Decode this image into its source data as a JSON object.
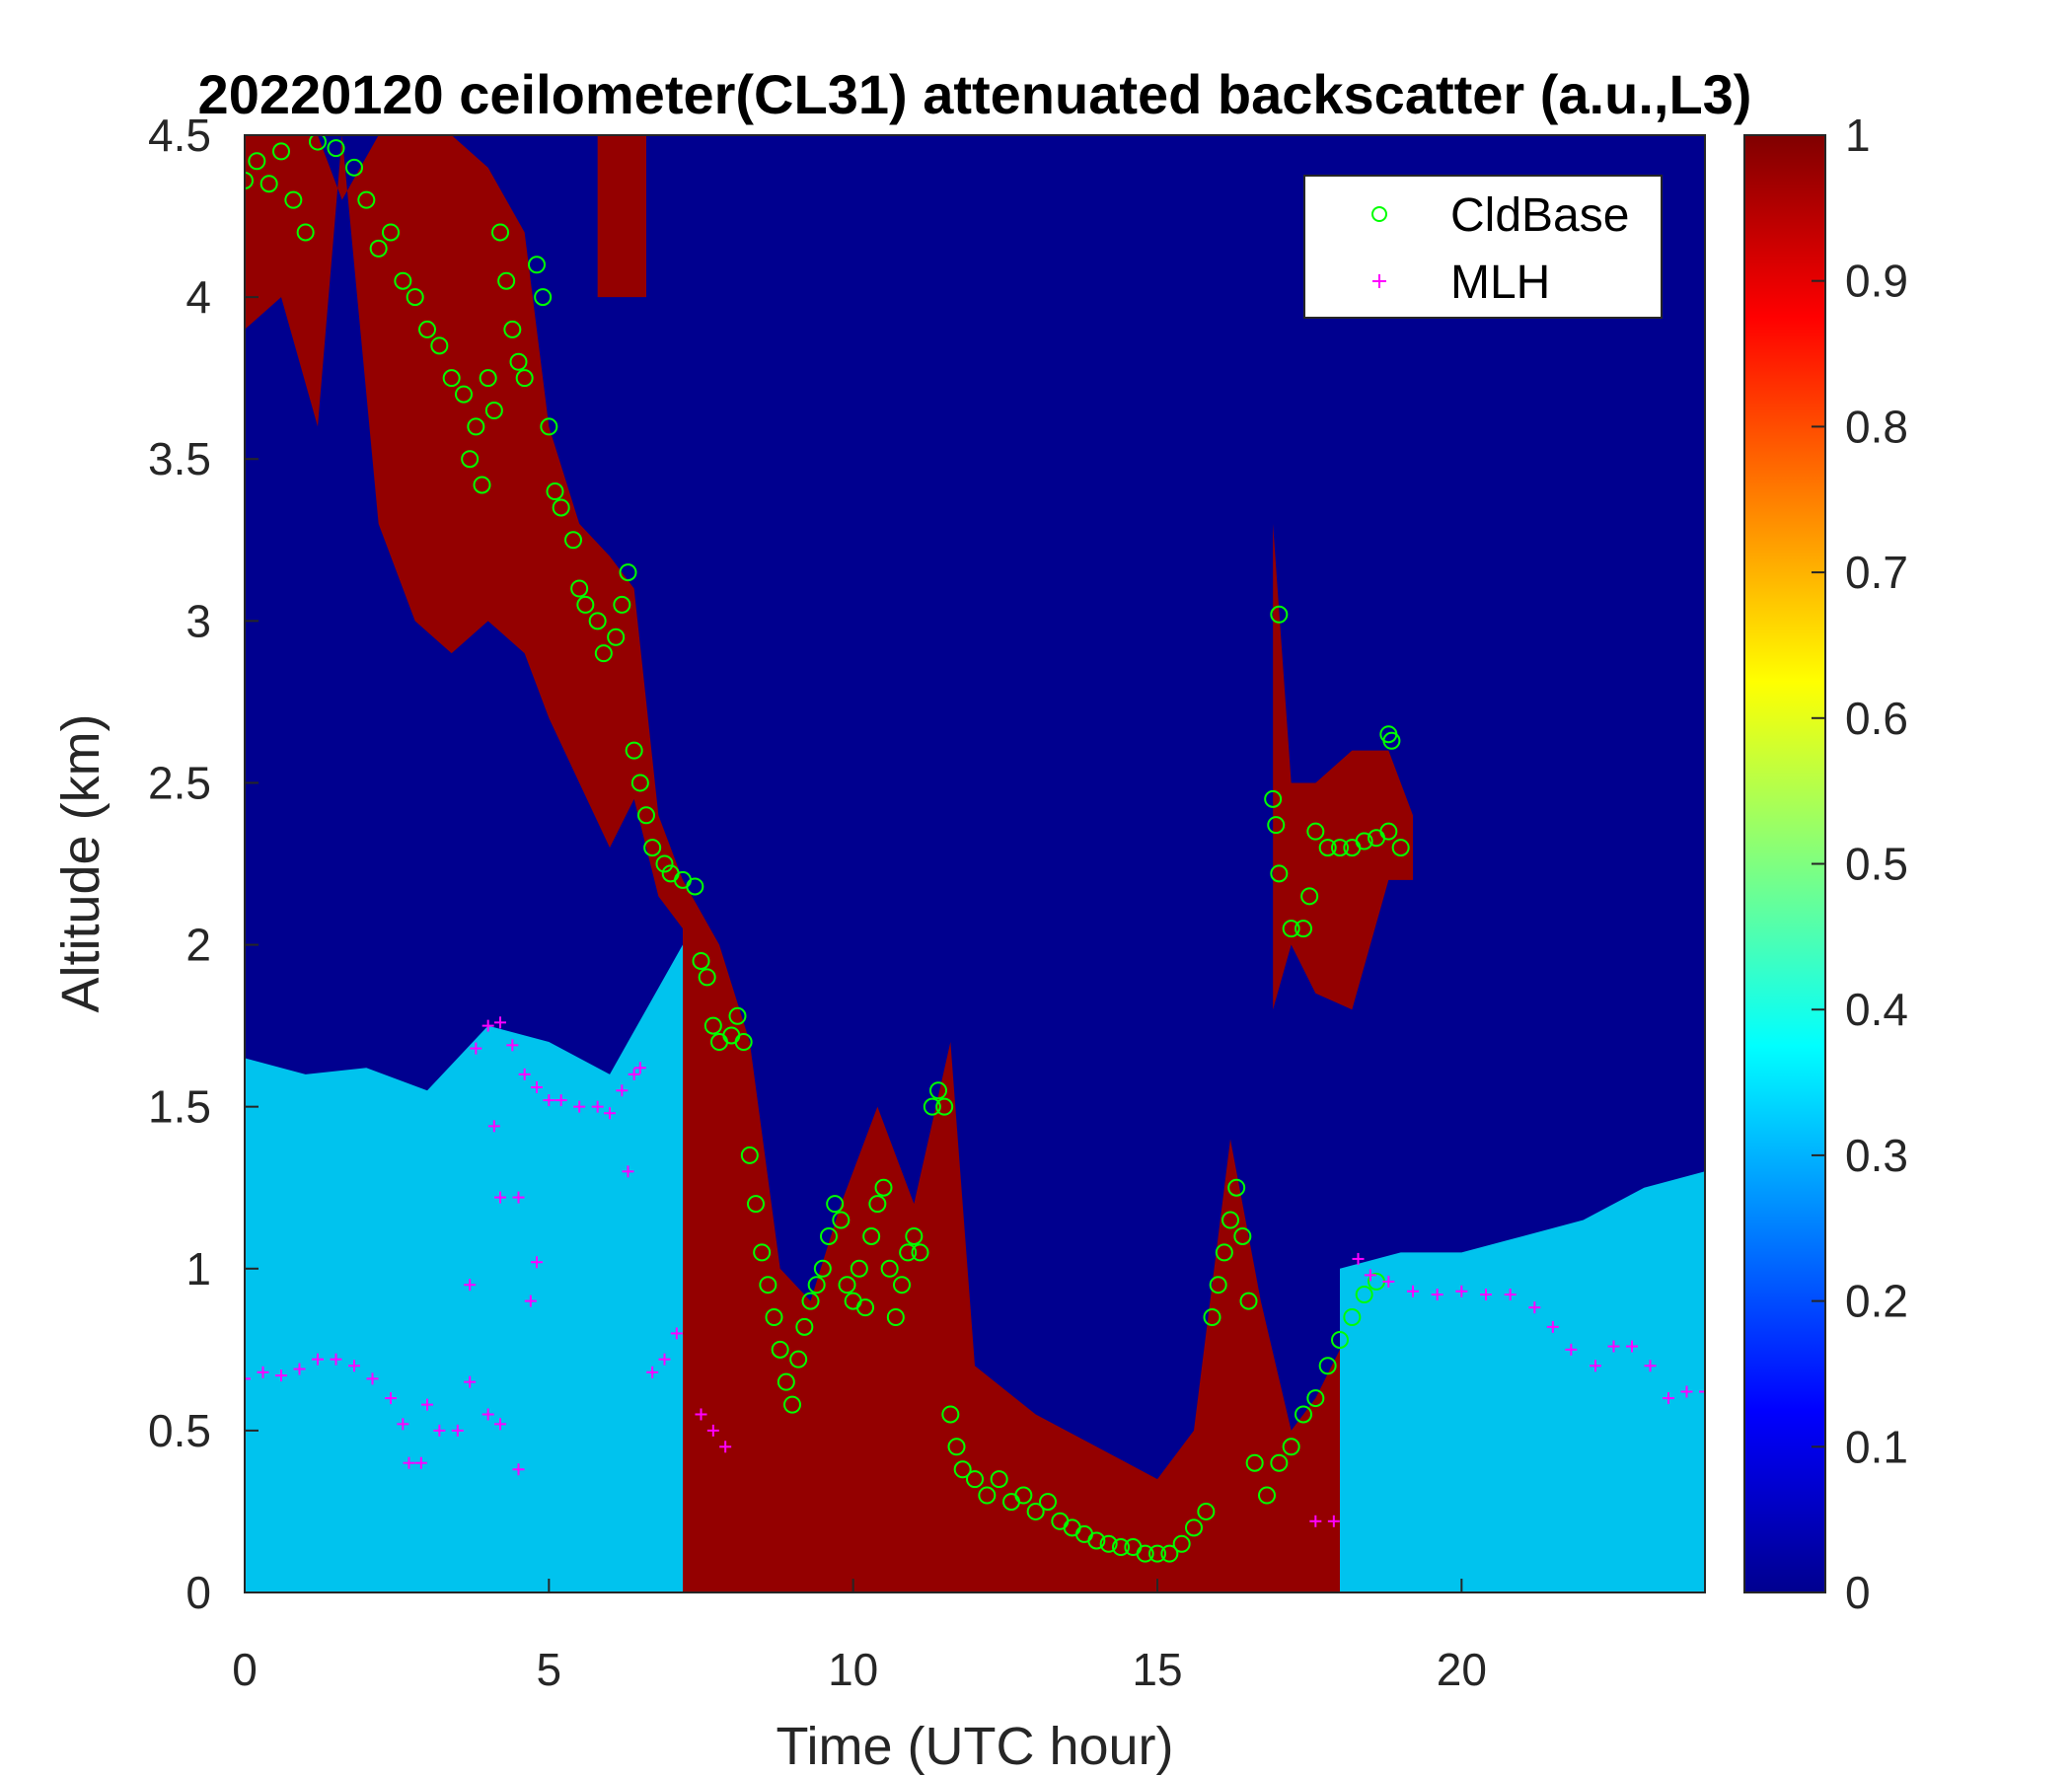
{
  "chart_data": {
    "type": "heatmap",
    "title": "20220120 ceilometer(CL31) attenuated backscatter (a.u.,L3)",
    "xlabel": "Time (UTC hour)",
    "ylabel": "Altitude (km)",
    "xlim": [
      0,
      24
    ],
    "ylim": [
      0,
      4.5
    ],
    "x_ticks": [
      0,
      5,
      10,
      15,
      20
    ],
    "x_tick_labels": [
      "0",
      "5",
      "10",
      "15",
      "20"
    ],
    "y_ticks": [
      0,
      0.5,
      1,
      1.5,
      2,
      2.5,
      3,
      3.5,
      4,
      4.5
    ],
    "y_tick_labels": [
      "0",
      "0.5",
      "1",
      "1.5",
      "2",
      "2.5",
      "3",
      "3.5",
      "4",
      "4.5"
    ],
    "colormap": "jet",
    "colorbar": {
      "range": [
        0,
        1
      ],
      "ticks": [
        0,
        0.1,
        0.2,
        0.3,
        0.4,
        0.5,
        0.6,
        0.7,
        0.8,
        0.9,
        1
      ],
      "tick_labels": [
        "0",
        "0.1",
        "0.2",
        "0.3",
        "0.4",
        "0.5",
        "0.6",
        "0.7",
        "0.8",
        "0.9",
        "1"
      ]
    },
    "legend": {
      "placement": "top-right",
      "entries": [
        {
          "label": "CldBase",
          "marker": "circle",
          "color": "#00ff00"
        },
        {
          "label": "MLH",
          "marker": "plus",
          "color": "#ff00ff"
        }
      ]
    },
    "cloud_bands": [
      {
        "points": [
          [
            0,
            4.5,
            3.9
          ],
          [
            0.6,
            4.5,
            4.0
          ],
          [
            1.2,
            4.5,
            3.6
          ],
          [
            1.6,
            4.3,
            4.5
          ],
          [
            2.2,
            4.5,
            3.3
          ],
          [
            2.8,
            4.5,
            3.0
          ],
          [
            3.4,
            4.5,
            2.9
          ],
          [
            4.0,
            4.4,
            3.0
          ],
          [
            4.6,
            4.2,
            2.9
          ],
          [
            5.0,
            3.6,
            2.7
          ],
          [
            5.5,
            3.3,
            2.5
          ],
          [
            6.0,
            3.2,
            2.3
          ],
          [
            6.4,
            3.1,
            2.45
          ],
          [
            6.8,
            2.4,
            2.15
          ],
          [
            7.2,
            2.2,
            2.05
          ]
        ],
        "value": 0.98
      },
      {
        "points": [
          [
            5.8,
            4.5,
            4.0
          ],
          [
            6.6,
            4.5,
            4.0
          ]
        ],
        "value": 0.98
      },
      {
        "points": [
          [
            7.2,
            2.2,
            0.0
          ],
          [
            7.8,
            2.0,
            0.0
          ],
          [
            8.3,
            1.7,
            0.0
          ],
          [
            8.8,
            1.0,
            0.0
          ],
          [
            9.3,
            0.9,
            0.0
          ],
          [
            9.8,
            1.2,
            0.0
          ],
          [
            10.4,
            1.5,
            0.0
          ],
          [
            11.0,
            1.2,
            0.0
          ],
          [
            11.6,
            1.7,
            0.0
          ],
          [
            12.0,
            0.7,
            0.0
          ],
          [
            13.0,
            0.55,
            0.0
          ],
          [
            14.0,
            0.45,
            0.0
          ],
          [
            15.0,
            0.35,
            0.0
          ],
          [
            15.6,
            0.5,
            0.0
          ],
          [
            16.2,
            1.4,
            0.0
          ],
          [
            16.7,
            0.9,
            0.0
          ],
          [
            17.2,
            0.5,
            0.0
          ],
          [
            17.6,
            0.6,
            0.0
          ],
          [
            18.0,
            0.75,
            0.0
          ]
        ],
        "value": 0.98
      },
      {
        "points": [
          [
            16.9,
            3.3,
            1.8
          ],
          [
            17.2,
            2.5,
            2.0
          ],
          [
            17.6,
            2.5,
            1.85
          ],
          [
            18.2,
            2.6,
            1.8
          ],
          [
            18.8,
            2.6,
            2.2
          ],
          [
            19.2,
            2.4,
            2.2
          ]
        ],
        "value": 0.98
      }
    ],
    "boundary_layer": [
      {
        "x": [
          0,
          1,
          2,
          3,
          4,
          5,
          6,
          7.2
        ],
        "top": [
          1.65,
          1.6,
          1.62,
          1.55,
          1.75,
          1.7,
          1.6,
          2.0
        ],
        "value": 0.35
      },
      {
        "x": [
          18.0,
          19,
          20,
          21,
          22,
          23,
          24
        ],
        "top": [
          1.0,
          1.05,
          1.05,
          1.1,
          1.15,
          1.25,
          1.3
        ],
        "value": 0.35
      }
    ],
    "series": [
      {
        "name": "CldBase",
        "marker": "circle",
        "color": "#00ff00",
        "points": [
          [
            0.0,
            4.36
          ],
          [
            0.2,
            4.42
          ],
          [
            0.4,
            4.35
          ],
          [
            0.6,
            4.45
          ],
          [
            0.8,
            4.3
          ],
          [
            1.0,
            4.2
          ],
          [
            1.2,
            4.48
          ],
          [
            1.5,
            4.46
          ],
          [
            1.8,
            4.4
          ],
          [
            2.0,
            4.3
          ],
          [
            2.2,
            4.15
          ],
          [
            2.4,
            4.2
          ],
          [
            2.6,
            4.05
          ],
          [
            2.8,
            4.0
          ],
          [
            3.0,
            3.9
          ],
          [
            3.2,
            3.85
          ],
          [
            3.4,
            3.75
          ],
          [
            3.6,
            3.7
          ],
          [
            3.8,
            3.6
          ],
          [
            3.7,
            3.5
          ],
          [
            3.9,
            3.42
          ],
          [
            4.0,
            3.75
          ],
          [
            4.1,
            3.65
          ],
          [
            4.2,
            4.2
          ],
          [
            4.3,
            4.05
          ],
          [
            4.4,
            3.9
          ],
          [
            4.5,
            3.8
          ],
          [
            4.6,
            3.75
          ],
          [
            4.8,
            4.1
          ],
          [
            4.9,
            4.0
          ],
          [
            5.0,
            3.6
          ],
          [
            5.1,
            3.4
          ],
          [
            5.2,
            3.35
          ],
          [
            5.4,
            3.25
          ],
          [
            5.5,
            3.1
          ],
          [
            5.6,
            3.05
          ],
          [
            5.8,
            3.0
          ],
          [
            5.9,
            2.9
          ],
          [
            6.1,
            2.95
          ],
          [
            6.2,
            3.05
          ],
          [
            6.3,
            3.15
          ],
          [
            6.4,
            2.6
          ],
          [
            6.5,
            2.5
          ],
          [
            6.6,
            2.4
          ],
          [
            6.7,
            2.3
          ],
          [
            6.9,
            2.25
          ],
          [
            7.0,
            2.22
          ],
          [
            7.2,
            2.2
          ],
          [
            7.4,
            2.18
          ],
          [
            7.5,
            1.95
          ],
          [
            7.6,
            1.9
          ],
          [
            7.7,
            1.75
          ],
          [
            7.8,
            1.7
          ],
          [
            8.0,
            1.72
          ],
          [
            8.1,
            1.78
          ],
          [
            8.2,
            1.7
          ],
          [
            8.3,
            1.35
          ],
          [
            8.4,
            1.2
          ],
          [
            8.5,
            1.05
          ],
          [
            8.6,
            0.95
          ],
          [
            8.7,
            0.85
          ],
          [
            8.8,
            0.75
          ],
          [
            8.9,
            0.65
          ],
          [
            9.0,
            0.58
          ],
          [
            9.1,
            0.72
          ],
          [
            9.2,
            0.82
          ],
          [
            9.3,
            0.9
          ],
          [
            9.4,
            0.95
          ],
          [
            9.5,
            1.0
          ],
          [
            9.6,
            1.1
          ],
          [
            9.7,
            1.2
          ],
          [
            9.8,
            1.15
          ],
          [
            9.9,
            0.95
          ],
          [
            10.0,
            0.9
          ],
          [
            10.1,
            1.0
          ],
          [
            10.2,
            0.88
          ],
          [
            10.3,
            1.1
          ],
          [
            10.4,
            1.2
          ],
          [
            10.5,
            1.25
          ],
          [
            10.6,
            1.0
          ],
          [
            10.7,
            0.85
          ],
          [
            10.8,
            0.95
          ],
          [
            10.9,
            1.05
          ],
          [
            11.0,
            1.1
          ],
          [
            11.1,
            1.05
          ],
          [
            11.3,
            1.5
          ],
          [
            11.4,
            1.55
          ],
          [
            11.5,
            1.5
          ],
          [
            11.6,
            0.55
          ],
          [
            11.7,
            0.45
          ],
          [
            11.8,
            0.38
          ],
          [
            12.0,
            0.35
          ],
          [
            12.2,
            0.3
          ],
          [
            12.4,
            0.35
          ],
          [
            12.6,
            0.28
          ],
          [
            12.8,
            0.3
          ],
          [
            13.0,
            0.25
          ],
          [
            13.2,
            0.28
          ],
          [
            13.4,
            0.22
          ],
          [
            13.6,
            0.2
          ],
          [
            13.8,
            0.18
          ],
          [
            14.0,
            0.16
          ],
          [
            14.2,
            0.15
          ],
          [
            14.4,
            0.14
          ],
          [
            14.6,
            0.14
          ],
          [
            14.8,
            0.12
          ],
          [
            15.0,
            0.12
          ],
          [
            15.2,
            0.12
          ],
          [
            15.4,
            0.15
          ],
          [
            15.6,
            0.2
          ],
          [
            15.8,
            0.25
          ],
          [
            15.9,
            0.85
          ],
          [
            16.0,
            0.95
          ],
          [
            16.1,
            1.05
          ],
          [
            16.2,
            1.15
          ],
          [
            16.3,
            1.25
          ],
          [
            16.4,
            1.1
          ],
          [
            16.5,
            0.9
          ],
          [
            16.6,
            0.4
          ],
          [
            16.8,
            0.3
          ],
          [
            17.0,
            0.4
          ],
          [
            17.2,
            0.45
          ],
          [
            17.4,
            0.55
          ],
          [
            17.6,
            0.6
          ],
          [
            17.8,
            0.7
          ],
          [
            18.0,
            0.78
          ],
          [
            18.2,
            0.85
          ],
          [
            18.4,
            0.92
          ],
          [
            18.6,
            0.96
          ],
          [
            17.0,
            3.02
          ],
          [
            16.9,
            2.45
          ],
          [
            16.95,
            2.37
          ],
          [
            17.0,
            2.22
          ],
          [
            17.2,
            2.05
          ],
          [
            17.4,
            2.05
          ],
          [
            17.5,
            2.15
          ],
          [
            17.6,
            2.35
          ],
          [
            17.8,
            2.3
          ],
          [
            18.0,
            2.3
          ],
          [
            18.2,
            2.3
          ],
          [
            18.4,
            2.32
          ],
          [
            18.6,
            2.33
          ],
          [
            18.8,
            2.35
          ],
          [
            19.0,
            2.3
          ],
          [
            18.8,
            2.65
          ],
          [
            18.85,
            2.63
          ]
        ]
      },
      {
        "name": "MLH",
        "marker": "plus",
        "color": "#ff00ff",
        "points": [
          [
            0.0,
            0.66
          ],
          [
            0.3,
            0.68
          ],
          [
            0.6,
            0.67
          ],
          [
            0.9,
            0.69
          ],
          [
            1.2,
            0.72
          ],
          [
            1.5,
            0.72
          ],
          [
            1.8,
            0.7
          ],
          [
            2.1,
            0.66
          ],
          [
            2.4,
            0.6
          ],
          [
            2.6,
            0.52
          ],
          [
            2.7,
            0.4
          ],
          [
            2.9,
            0.4
          ],
          [
            3.0,
            0.58
          ],
          [
            3.2,
            0.5
          ],
          [
            3.5,
            0.5
          ],
          [
            3.7,
            0.65
          ],
          [
            3.8,
            1.68
          ],
          [
            4.0,
            1.75
          ],
          [
            4.1,
            1.44
          ],
          [
            4.2,
            1.76
          ],
          [
            4.4,
            1.69
          ],
          [
            4.6,
            1.6
          ],
          [
            4.8,
            1.56
          ],
          [
            5.0,
            1.52
          ],
          [
            5.2,
            1.52
          ],
          [
            5.5,
            1.5
          ],
          [
            5.8,
            1.5
          ],
          [
            6.0,
            1.48
          ],
          [
            6.2,
            1.55
          ],
          [
            6.4,
            1.6
          ],
          [
            6.5,
            1.62
          ],
          [
            4.2,
            1.22
          ],
          [
            4.5,
            1.22
          ],
          [
            4.7,
            0.9
          ],
          [
            4.8,
            1.02
          ],
          [
            3.7,
            0.95
          ],
          [
            4.0,
            0.55
          ],
          [
            4.2,
            0.52
          ],
          [
            4.5,
            0.38
          ],
          [
            6.3,
            1.3
          ],
          [
            6.7,
            0.68
          ],
          [
            6.9,
            0.72
          ],
          [
            7.1,
            0.8
          ],
          [
            7.5,
            0.55
          ],
          [
            7.7,
            0.5
          ],
          [
            7.9,
            0.45
          ],
          [
            17.6,
            0.22
          ],
          [
            17.9,
            0.22
          ],
          [
            18.3,
            1.03
          ],
          [
            18.5,
            0.98
          ],
          [
            18.8,
            0.96
          ],
          [
            19.2,
            0.93
          ],
          [
            19.6,
            0.92
          ],
          [
            20.0,
            0.93
          ],
          [
            20.4,
            0.92
          ],
          [
            20.8,
            0.92
          ],
          [
            21.2,
            0.88
          ],
          [
            21.5,
            0.82
          ],
          [
            21.8,
            0.75
          ],
          [
            22.2,
            0.7
          ],
          [
            22.5,
            0.76
          ],
          [
            22.8,
            0.76
          ],
          [
            23.1,
            0.7
          ],
          [
            23.4,
            0.6
          ],
          [
            23.7,
            0.62
          ],
          [
            24.0,
            0.62
          ]
        ]
      }
    ]
  }
}
